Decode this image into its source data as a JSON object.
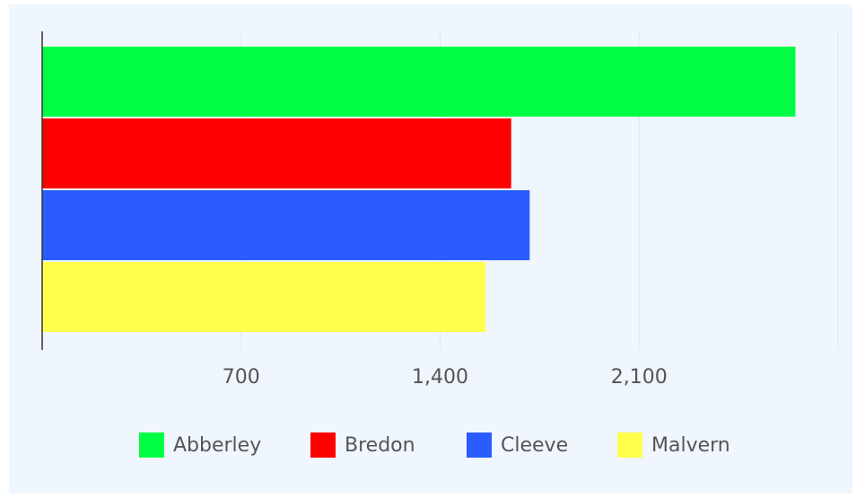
{
  "chart_data": {
    "type": "bar",
    "orientation": "horizontal",
    "series": [
      {
        "name": "Abberley",
        "color": "#00ff44",
        "values": [
          2650
        ]
      },
      {
        "name": "Bredon",
        "color": "#ff0000",
        "values": [
          1650
        ]
      },
      {
        "name": "Cleeve",
        "color": "#2a5cff",
        "values": [
          1715
        ]
      },
      {
        "name": "Malvern",
        "color": "#ffff4c",
        "values": [
          1560
        ]
      }
    ],
    "xlim": [
      0,
      2800
    ],
    "xticks": [
      700,
      {
        "value": 1400,
        "label": "1,400"
      },
      {
        "value": 2100,
        "label": "2,100"
      }
    ],
    "grid": true,
    "legend": "bottom"
  }
}
